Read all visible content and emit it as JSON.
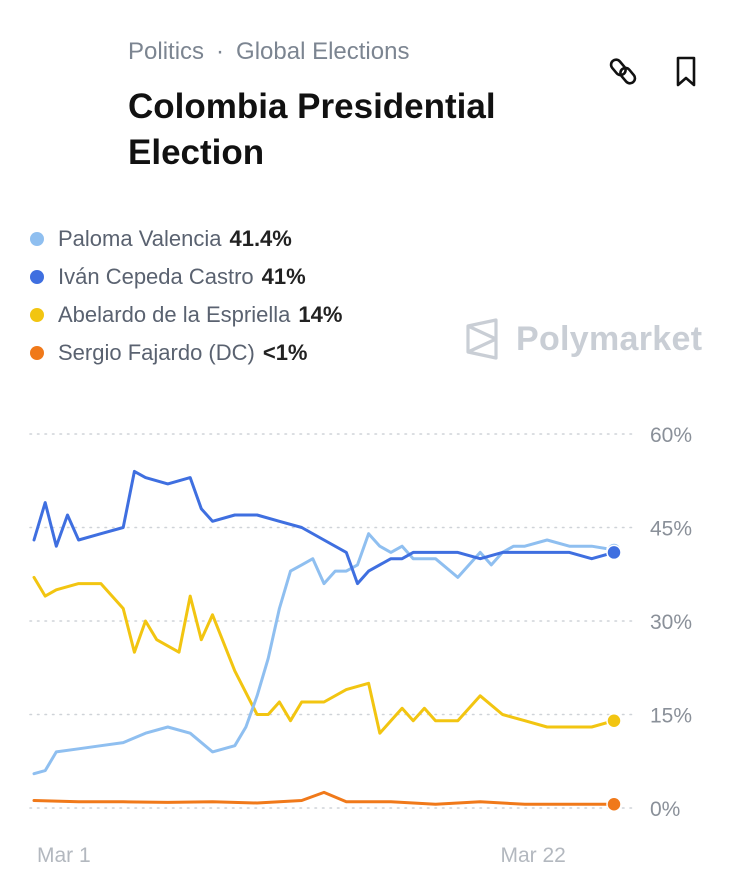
{
  "header": {
    "category": "Politics",
    "separator": "·",
    "subcategory": "Global Elections",
    "title": "Colombia Presidential Election",
    "flag_colors": [
      "#FCD116",
      "#003893",
      "#CE1126"
    ]
  },
  "actions": {
    "link_icon": "link-icon",
    "bookmark_icon": "bookmark-icon"
  },
  "legend": [
    {
      "name": "Paloma Valencia",
      "value": "41.4%",
      "color": "#8fbff0"
    },
    {
      "name": "Iván Cepeda Castro",
      "value": "41%",
      "color": "#3f6fe0"
    },
    {
      "name": "Abelardo de la Espriella",
      "value": "14%",
      "color": "#f2c511"
    },
    {
      "name": "Sergio Fajardo (DC)",
      "value": "<1%",
      "color": "#f0791a"
    }
  ],
  "watermark": "Polymarket",
  "chart_data": {
    "type": "line",
    "ylim": [
      0,
      60
    ],
    "y_ticks": [
      "0%",
      "15%",
      "30%",
      "45%",
      "60%"
    ],
    "y_tick_values": [
      0,
      15,
      30,
      45,
      60
    ],
    "x_ticks": [
      "Mar 1",
      "Mar 22"
    ],
    "x_tick_values": [
      1,
      22
    ],
    "xlim": [
      1,
      27
    ],
    "grid": true,
    "series": [
      {
        "name": "Paloma Valencia",
        "color": "#8fbff0",
        "x": [
          1,
          1.5,
          2,
          3,
          4,
          5,
          6,
          7,
          8,
          9,
          10,
          10.5,
          11,
          11.5,
          12,
          12.5,
          13,
          13.5,
          14,
          14.5,
          15,
          15.5,
          16,
          16.5,
          17,
          17.5,
          18,
          18.5,
          19,
          20,
          21,
          21.5,
          22,
          22.5,
          23,
          24,
          25,
          26,
          27
        ],
        "y": [
          5.5,
          6,
          9,
          9.5,
          10,
          10.5,
          12,
          13,
          12,
          9,
          10,
          13,
          18,
          24,
          32,
          38,
          39,
          40,
          36,
          38,
          38,
          39,
          44,
          42,
          41,
          42,
          40,
          40,
          40,
          37,
          41,
          39,
          41,
          42,
          42,
          43,
          42,
          42,
          41.4
        ]
      },
      {
        "name": "Iván Cepeda Castro",
        "color": "#3f6fe0",
        "x": [
          1,
          1.5,
          2,
          2.5,
          3,
          4,
          5,
          5.5,
          6,
          7,
          8,
          8.5,
          9,
          10,
          11,
          12,
          13,
          14,
          15,
          15.5,
          16,
          17,
          17.5,
          18,
          19,
          20,
          21,
          22,
          23,
          24,
          25,
          26,
          27
        ],
        "y": [
          43,
          49,
          42,
          47,
          43,
          44,
          45,
          54,
          53,
          52,
          53,
          48,
          46,
          47,
          47,
          46,
          45,
          43,
          41,
          36,
          38,
          40,
          40,
          41,
          41,
          41,
          40,
          41,
          41,
          41,
          41,
          40,
          41
        ]
      },
      {
        "name": "Abelardo de la Espriella",
        "color": "#f2c511",
        "x": [
          1,
          1.5,
          2,
          3,
          4,
          5,
          5.5,
          6,
          6.5,
          7,
          7.5,
          8,
          8.5,
          9,
          10,
          11,
          11.5,
          12,
          12.5,
          13,
          14,
          15,
          16,
          16.5,
          17,
          17.5,
          18,
          18.5,
          19,
          20,
          21,
          22,
          23,
          24,
          25,
          26,
          27
        ],
        "y": [
          37,
          34,
          35,
          36,
          36,
          32,
          25,
          30,
          27,
          26,
          25,
          34,
          27,
          31,
          22,
          15,
          15,
          17,
          14,
          17,
          17,
          19,
          20,
          12,
          14,
          16,
          14,
          16,
          14,
          14,
          18,
          15,
          14,
          13,
          13,
          13,
          14
        ]
      },
      {
        "name": "Sergio Fajardo (DC)",
        "color": "#f0791a",
        "x": [
          1,
          3,
          5,
          7,
          9,
          11,
          13,
          14,
          15,
          17,
          19,
          21,
          23,
          25,
          27
        ],
        "y": [
          1.2,
          1.0,
          1.0,
          0.9,
          1.0,
          0.8,
          1.2,
          2.5,
          1.0,
          1.0,
          0.6,
          1.0,
          0.6,
          0.6,
          0.6
        ]
      }
    ]
  }
}
